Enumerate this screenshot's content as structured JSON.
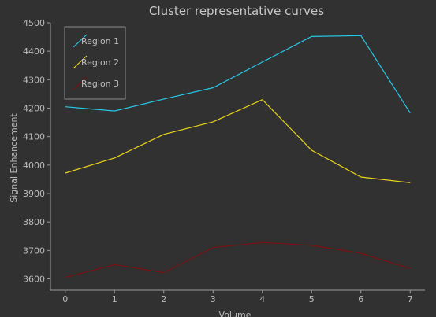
{
  "chart_data": {
    "type": "line",
    "title": "Cluster representative curves",
    "xlabel": "Volume",
    "ylabel": "Signal Enhancement",
    "x": [
      0,
      1,
      2,
      3,
      4,
      5,
      6,
      7
    ],
    "xlim": [
      -0.3,
      7.3
    ],
    "ylim": [
      3560,
      4500
    ],
    "yticks": [
      3600,
      3700,
      3800,
      3900,
      4000,
      4100,
      4200,
      4300,
      4400,
      4500
    ],
    "xticks": [
      0,
      1,
      2,
      3,
      4,
      5,
      6,
      7
    ],
    "grid": false,
    "legend_position": "top-left",
    "series": [
      {
        "name": "Region 1",
        "color": "#28c8e8",
        "values": [
          4205,
          4190,
          4232,
          4272,
          4362,
          4452,
          4455,
          4183
        ]
      },
      {
        "name": "Region 2",
        "color": "#e8d418",
        "values": [
          3972,
          4025,
          4108,
          4152,
          4230,
          4052,
          3958,
          3938
        ]
      },
      {
        "name": "Region 3",
        "color": "#7a1010",
        "values": [
          3605,
          3650,
          3622,
          3710,
          3728,
          3718,
          3690,
          3636
        ]
      }
    ]
  }
}
